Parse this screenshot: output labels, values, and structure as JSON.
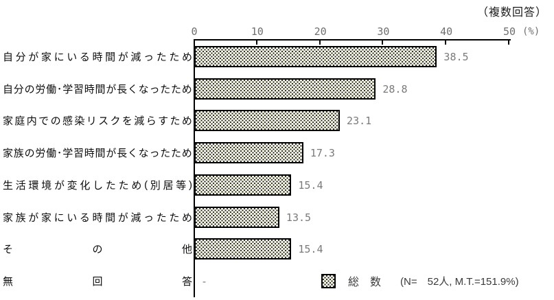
{
  "chart_data": {
    "type": "bar",
    "orientation": "horizontal",
    "note": "（複数回答）",
    "axis_unit": "(%)",
    "xlim": [
      0,
      50
    ],
    "x_ticks": [
      0,
      10,
      20,
      30,
      40,
      50
    ],
    "grid": false,
    "legend_position": "bottom-right",
    "categories": [
      "自分が家にいる時間が減ったため",
      "自分の労働･学習時間が長くなったため",
      "家庭内での感染リスクを減らすため",
      "家族の労働･学習時間が長くなったため",
      "生活環境が変化したため(別居等)",
      "家族が家にいる時間が減ったため",
      "その他",
      "無回答"
    ],
    "values": [
      38.5,
      28.8,
      23.1,
      17.3,
      15.4,
      13.5,
      15.4,
      null
    ],
    "value_labels": [
      "38.5",
      "28.8",
      "23.1",
      "17.3",
      "15.4",
      "13.5",
      "15.4",
      "-"
    ],
    "legend": {
      "swatch": "dotted-pattern-swatch",
      "label": "総　数",
      "stats": "(N=　52人, M.T.=151.9%)"
    },
    "colors": {
      "bar_fill": "#f7f7e6",
      "bar_dot": "#1c1c1c",
      "bar_border": "#000000",
      "value_text": "#7a7a7a",
      "axis": "#000000"
    }
  }
}
